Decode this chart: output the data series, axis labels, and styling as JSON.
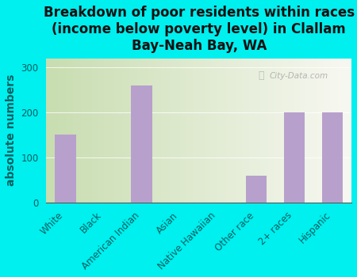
{
  "title": "Breakdown of poor residents within races\n(income below poverty level) in Clallam\nBay-Neah Bay, WA",
  "categories": [
    "White",
    "Black",
    "American Indian",
    "Asian",
    "Native Hawaiian",
    "Other race",
    "2+ races",
    "Hispanic"
  ],
  "values": [
    150,
    0,
    260,
    0,
    0,
    60,
    200,
    200
  ],
  "bar_color": "#b8a0cc",
  "ylabel": "absolute numbers",
  "ylim": [
    0,
    320
  ],
  "yticks": [
    0,
    100,
    200,
    300
  ],
  "background_outer": "#00efef",
  "plot_bg_left": "#c8ddb0",
  "plot_bg_right": "#f5f5f0",
  "watermark": "City-Data.com",
  "title_fontsize": 12,
  "ylabel_fontsize": 10,
  "tick_fontsize": 8.5,
  "tick_color": "#006060",
  "title_color": "#111111"
}
